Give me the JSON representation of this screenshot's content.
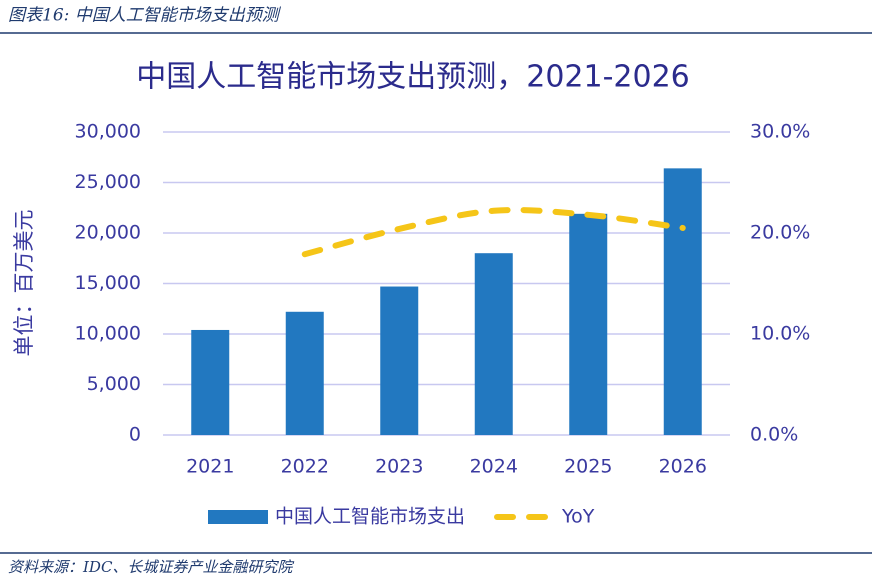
{
  "header": "图表16:  中国人工智能市场支出预测",
  "source": "资料来源：IDC、长城证券产业金融研究院",
  "chart_data": {
    "type": "bar",
    "title": "中国人工智能市场支出预测，2021-2026",
    "y_label": "单位：百万美元",
    "categories": [
      "2021",
      "2022",
      "2023",
      "2024",
      "2025",
      "2026"
    ],
    "series": [
      {
        "name": "中国人工智能市场支出",
        "type": "bar",
        "color": "#2278c0",
        "values": [
          10400,
          12200,
          14700,
          18000,
          21900,
          26400
        ]
      },
      {
        "name": "YoY",
        "type": "line",
        "axis": "y2",
        "color": "#f5c518",
        "dashed": true,
        "values": [
          null,
          17.9,
          20.4,
          22.2,
          21.8,
          20.5
        ]
      }
    ],
    "ylim": [
      0,
      30000
    ],
    "yticks": [
      0,
      {
        "value": 5000,
        "label": "5,000"
      },
      {
        "value": 10000,
        "label": "10,000"
      },
      {
        "value": 15000,
        "label": "15,000"
      },
      {
        "value": 20000,
        "label": "20,000"
      },
      {
        "value": 25000,
        "label": "25,000"
      },
      {
        "value": 30000,
        "label": "30,000"
      }
    ],
    "y2lim": [
      0,
      30
    ],
    "y2ticks": [
      {
        "value": 0,
        "label": "0.0%"
      },
      {
        "value": 10,
        "label": "10.0%"
      },
      {
        "value": 20,
        "label": "20.0%"
      },
      {
        "value": 30,
        "label": "30.0%"
      }
    ],
    "grid": true,
    "legend": "bottom"
  }
}
